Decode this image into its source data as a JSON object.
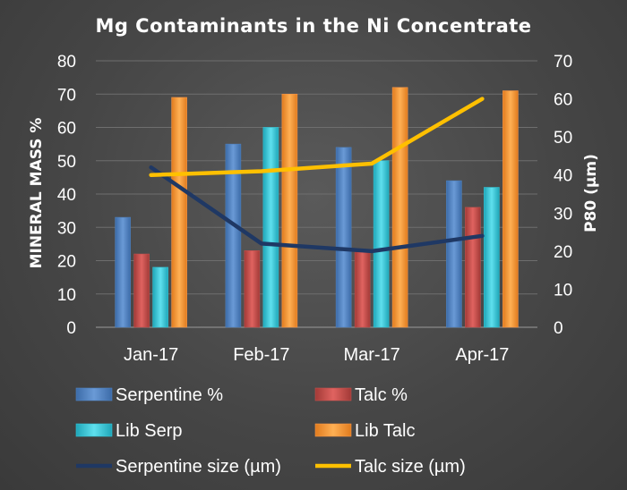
{
  "chart_data": {
    "type": "bar",
    "title": "Mg Contaminants in the Ni Concentrate",
    "categories": [
      "Jan-17",
      "Feb-17",
      "Mar-17",
      "Apr-17"
    ],
    "ylabel": "MINERAL MASS %",
    "y2label": "P80 (µm)",
    "ylim": [
      0,
      80
    ],
    "y2lim": [
      0,
      70
    ],
    "yticks": [
      0,
      10,
      20,
      30,
      40,
      50,
      60,
      70,
      80
    ],
    "y2ticks": [
      0,
      10,
      20,
      30,
      40,
      50,
      60,
      70
    ],
    "grid": true,
    "legend_position": "bottom",
    "series": [
      {
        "name": "Serpentine %",
        "kind": "bar",
        "axis": "left",
        "color": "#4f81bd",
        "values": [
          33,
          55,
          54,
          44
        ]
      },
      {
        "name": "Talc %",
        "kind": "bar",
        "axis": "left",
        "color": "#c0504d",
        "values": [
          22,
          23,
          23,
          36
        ]
      },
      {
        "name": "Lib Serp",
        "kind": "bar",
        "axis": "left",
        "color": "#31c6d8",
        "values": [
          18,
          60,
          50,
          42
        ]
      },
      {
        "name": "Lib Talc",
        "kind": "bar",
        "axis": "left",
        "color": "#f79646",
        "values": [
          69,
          70,
          72,
          71
        ]
      },
      {
        "name": "Serpentine size (µm)",
        "kind": "line",
        "axis": "right",
        "color": "#1f3864",
        "values": [
          42,
          22,
          20,
          24
        ]
      },
      {
        "name": "Talc size (µm)",
        "kind": "line",
        "axis": "right",
        "color": "#ffc000",
        "values": [
          40,
          41,
          43,
          60
        ]
      }
    ]
  }
}
